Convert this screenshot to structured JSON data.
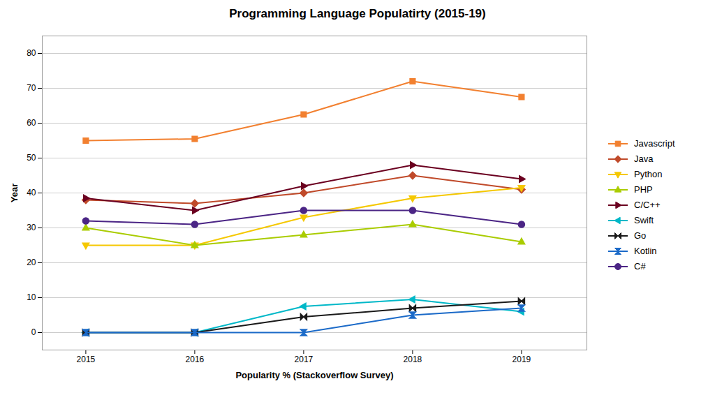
{
  "chart_data": {
    "type": "line",
    "title": "Programming Language Populatirty (2015-19)",
    "xlabel": "Popularity % (Stackoverflow Survey)",
    "ylabel": "Year",
    "x": [
      2015,
      2016,
      2017,
      2018,
      2019
    ],
    "xlim": [
      2014.6,
      2019.6
    ],
    "xticks": [
      2015,
      2016,
      2017,
      2018,
      2019
    ],
    "ylim": [
      -5,
      85
    ],
    "yticks": [
      0,
      10,
      20,
      30,
      40,
      50,
      60,
      70,
      80
    ],
    "grid": "y",
    "legend": "right",
    "series": [
      {
        "name": "Javascript",
        "color": "#F28030",
        "marker": "square",
        "values": [
          55,
          55.5,
          62.5,
          72,
          67.5
        ]
      },
      {
        "name": "Java",
        "color": "#C04A2A",
        "marker": "diamond",
        "values": [
          38,
          37,
          40,
          45,
          41
        ]
      },
      {
        "name": "Python",
        "color": "#F5C800",
        "marker": "triangle-down",
        "values": [
          25,
          25,
          33,
          38.5,
          41.5
        ]
      },
      {
        "name": "PHP",
        "color": "#AACC00",
        "marker": "triangle-up",
        "values": [
          30,
          25,
          28,
          31,
          26
        ]
      },
      {
        "name": "C/C++",
        "color": "#6B0020",
        "marker": "triangle-right",
        "values": [
          38.5,
          35,
          42,
          48,
          44
        ]
      },
      {
        "name": "Swift",
        "color": "#00B8C8",
        "marker": "triangle-left",
        "values": [
          0,
          0,
          7.5,
          9.5,
          6
        ]
      },
      {
        "name": "Go",
        "color": "#1A1A1A",
        "marker": "bowtie",
        "values": [
          0,
          0,
          4.5,
          7,
          9
        ]
      },
      {
        "name": "Kotlin",
        "color": "#1B6AC8",
        "marker": "hourglass",
        "values": [
          0,
          0,
          0,
          5,
          7
        ]
      },
      {
        "name": "C#",
        "color": "#4B2585",
        "marker": "circle",
        "values": [
          32,
          31,
          35,
          35,
          31
        ]
      }
    ]
  }
}
